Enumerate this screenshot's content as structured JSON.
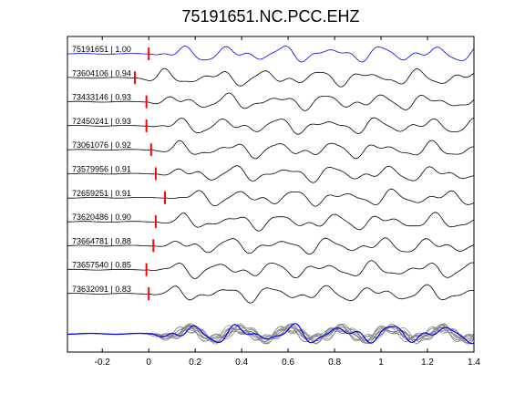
{
  "chart_data": {
    "type": "line",
    "title": "75191651.NC.PCC.EHZ",
    "xlabel": "",
    "ylabel": "",
    "xlim": [
      -0.35,
      1.4
    ],
    "xticks": [
      "-0.2",
      "0",
      "0.2",
      "0.4",
      "0.6",
      "0.8",
      "1",
      "1.2",
      "1.4"
    ],
    "xtick_values": [
      -0.2,
      0,
      0.2,
      0.4,
      0.6,
      0.8,
      1.0,
      1.2,
      1.4
    ],
    "grid": false,
    "colors": {
      "template_trace": "#0000ff",
      "matched_trace": "#000000",
      "pick_marker": "#ff0000",
      "stack_gray": "#808080",
      "stack_blue": "#0000ff"
    },
    "traces": [
      {
        "id": "75191651",
        "cc": "1.00",
        "label": "75191651 | 1.00",
        "pick_time": 0.0,
        "is_template": true
      },
      {
        "id": "73604106",
        "cc": "0.94",
        "label": "73604106 | 0.94",
        "pick_time": -0.06,
        "is_template": false
      },
      {
        "id": "73433146",
        "cc": "0.93",
        "label": "73433146 | 0.93",
        "pick_time": -0.01,
        "is_template": false
      },
      {
        "id": "72450241",
        "cc": "0.93",
        "label": "72450241 | 0.93",
        "pick_time": -0.01,
        "is_template": false
      },
      {
        "id": "73061076",
        "cc": "0.92",
        "label": "73061076 | 0.92",
        "pick_time": 0.01,
        "is_template": false
      },
      {
        "id": "73579956",
        "cc": "0.91",
        "label": "73579956 | 0.91",
        "pick_time": 0.03,
        "is_template": false
      },
      {
        "id": "72659251",
        "cc": "0.91",
        "label": "72659251 | 0.91",
        "pick_time": 0.07,
        "is_template": false
      },
      {
        "id": "73620486",
        "cc": "0.90",
        "label": "73620486 | 0.90",
        "pick_time": 0.03,
        "is_template": false
      },
      {
        "id": "73664781",
        "cc": "0.88",
        "label": "73664781 | 0.88",
        "pick_time": 0.02,
        "is_template": false
      },
      {
        "id": "73657540",
        "cc": "0.85",
        "label": "73657540 | 0.85",
        "pick_time": -0.01,
        "is_template": false
      },
      {
        "id": "73632091",
        "cc": "0.83",
        "label": "73632091 | 0.83",
        "pick_time": 0.0,
        "is_template": false
      }
    ],
    "stack": {
      "description_shown": false
    }
  }
}
